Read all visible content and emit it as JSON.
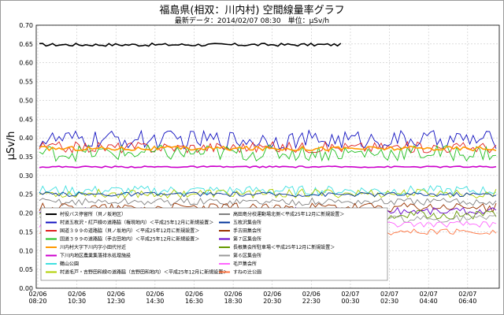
{
  "chart_data": {
    "type": "line",
    "title": "福島県(相双：川内村) 空間線量率グラフ",
    "subtitle": "最新データ：2014/02/07 08:30　単位：μSv/h",
    "ylabel": "μSv/h",
    "xlabel": "",
    "ylim": [
      0,
      0.7
    ],
    "y_ticks": [
      "0.00",
      "0.05",
      "0.10",
      "0.15",
      "0.20",
      "0.25",
      "0.30",
      "0.35",
      "0.40",
      "0.45",
      "0.50",
      "0.55",
      "0.60",
      "0.65",
      "0.70"
    ],
    "x_ticks": [
      {
        "date": "02/06",
        "time": "08:20"
      },
      {
        "date": "02/06",
        "time": "10:30"
      },
      {
        "date": "02/06",
        "time": "12:30"
      },
      {
        "date": "02/06",
        "time": "14:30"
      },
      {
        "date": "02/06",
        "time": "16:30"
      },
      {
        "date": "02/06",
        "time": "18:30"
      },
      {
        "date": "02/06",
        "time": "20:30"
      },
      {
        "date": "02/06",
        "time": "22:30"
      },
      {
        "date": "02/07",
        "time": "00:30"
      },
      {
        "date": "02/07",
        "time": "02:30"
      },
      {
        "date": "02/07",
        "time": "04:40"
      },
      {
        "date": "02/07",
        "time": "06:40"
      }
    ],
    "grid": true,
    "legend_position": "bottom-left",
    "series": [
      {
        "name": "村役バス停留所（貝ノ坂地区）",
        "color": "#000000",
        "base": 0.648,
        "noise": 0.004,
        "end_fraction": 0.66,
        "thick": true
      },
      {
        "name": "村道五枚沢・紅戸線の道路脇（権現地内）＜平成25年12月に新規設置＞",
        "color": "#1010c0",
        "base": 0.395,
        "noise": 0.025,
        "end_fraction": 1.0
      },
      {
        "name": "国道３９９の道路脇（貝ノ坂地内）＜平成25年12月に新規設置＞",
        "color": "#e02020",
        "base": 0.375,
        "noise": 0.015,
        "end_fraction": 1.0
      },
      {
        "name": "国道３９９の道路脇（手古田地内）＜平成25年12月に新規設置＞",
        "color": "#20c020",
        "base": 0.36,
        "noise": 0.022,
        "end_fraction": 1.0
      },
      {
        "name": "川内村大字下川内字小田代付近",
        "color": "#ff9900",
        "base": 0.372,
        "noise": 0.006,
        "end_fraction": 1.0,
        "thick": true
      },
      {
        "name": "下川内地区農業集落排水処理施設",
        "color": "#cc00cc",
        "base": 0.323,
        "noise": 0.002,
        "end_fraction": 1.0,
        "thick": true
      },
      {
        "name": "鶴山公園",
        "color": "#40e0e0",
        "base": 0.26,
        "noise": 0.013,
        "end_fraction": 1.0
      },
      {
        "name": "村道毛戸・吉野田和線の道路脇（吉野田和地内）＜平成25年12月に新規設置＞",
        "color": "#b0d000",
        "base": 0.252,
        "noise": 0.012,
        "end_fraction": 1.0
      },
      {
        "name": "高田島分校運動場北側＜平成25年12月に新規設置＞",
        "color": "#808080",
        "base": 0.23,
        "noise": 0.01,
        "end_fraction": 1.0
      },
      {
        "name": "五枚沢集会所",
        "color": "#003399",
        "base": 0.25,
        "noise": 0.006,
        "end_fraction": 1.0
      },
      {
        "name": "手古田集会所",
        "color": "#993300",
        "base": 0.215,
        "noise": 0.012,
        "end_fraction": 1.0
      },
      {
        "name": "第７区集会所",
        "color": "#6600cc",
        "base": 0.205,
        "noise": 0.01,
        "end_fraction": 1.0
      },
      {
        "name": "長根集会所駐車場＜平成25年12月に新規設置＞",
        "color": "#669900",
        "base": 0.195,
        "noise": 0.012,
        "end_fraction": 1.0
      },
      {
        "name": "第６区集会所",
        "color": "#999999",
        "base": 0.185,
        "noise": 0.01,
        "end_fraction": 1.0
      },
      {
        "name": "毛戸集会所",
        "color": "#ff66ff",
        "base": 0.17,
        "noise": 0.008,
        "end_fraction": 1.0
      },
      {
        "name": "すねの辻公園",
        "color": "#ff7744",
        "base": 0.15,
        "noise": 0.008,
        "end_fraction": 1.0
      }
    ]
  }
}
